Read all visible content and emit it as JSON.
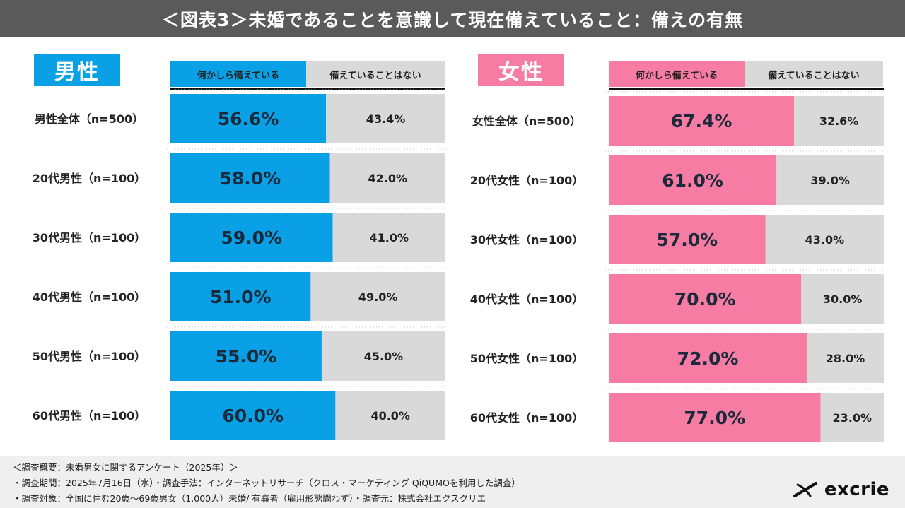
{
  "title": "＜図表3＞未婚であることを意識して現在備えていること：備えの有無",
  "colors": {
    "male": "#0aa0e6",
    "female": "#f77ca4",
    "no": "#d9d9d9",
    "header": "#5a5a5a"
  },
  "legend": {
    "yes": "何かしら備えている",
    "no": "備えていることはない"
  },
  "chart_data": [
    {
      "type": "bar",
      "stacked": true,
      "orientation": "horizontal",
      "title": "男性",
      "categories": [
        "男性全体（n=500）",
        "20代男性（n=100）",
        "30代男性（n=100）",
        "40代男性（n=100）",
        "50代男性（n=100）",
        "60代男性（n=100）"
      ],
      "series": [
        {
          "name": "何かしら備えている",
          "values": [
            56.6,
            58.0,
            59.0,
            51.0,
            55.0,
            60.0
          ],
          "labels": [
            "56.6%",
            "58.0%",
            "59.0%",
            "51.0%",
            "55.0%",
            "60.0%"
          ]
        },
        {
          "name": "備えていることはない",
          "values": [
            43.4,
            42.0,
            41.0,
            49.0,
            45.0,
            40.0
          ],
          "labels": [
            "43.4%",
            "42.0%",
            "41.0%",
            "49.0%",
            "45.0%",
            "40.0%"
          ]
        }
      ],
      "xlim": [
        0,
        100
      ]
    },
    {
      "type": "bar",
      "stacked": true,
      "orientation": "horizontal",
      "title": "女性",
      "categories": [
        "女性全体（n=500）",
        "20代女性（n=100）",
        "30代女性（n=100）",
        "40代女性（n=100）",
        "50代女性（n=100）",
        "60代女性（n=100）"
      ],
      "series": [
        {
          "name": "何かしら備えている",
          "values": [
            67.4,
            61.0,
            57.0,
            70.0,
            72.0,
            77.0
          ],
          "labels": [
            "67.4%",
            "61.0%",
            "57.0%",
            "70.0%",
            "72.0%",
            "77.0%"
          ]
        },
        {
          "name": "備えていることはない",
          "values": [
            32.6,
            39.0,
            43.0,
            30.0,
            28.0,
            23.0
          ],
          "labels": [
            "32.6%",
            "39.0%",
            "43.0%",
            "30.0%",
            "28.0%",
            "23.0%"
          ]
        }
      ],
      "xlim": [
        0,
        100
      ]
    }
  ],
  "footer": {
    "line1": "＜調査概要：未婚男女に関するアンケート（2025年）＞",
    "line2": "・調査期間：2025年7月16日（水）・調査手法：インターネットリサーチ（クロス・マーケティング QiQUMOを利用した調査）",
    "line3": "・調査対象：全国に住む20歳～69歳男女（1,000人）未婚/ 有職者（雇用形態問わず）・調査元：株式会社エクスクリエ"
  },
  "brand": {
    "name": "excrie",
    "icon": "excrie-logo-icon"
  }
}
